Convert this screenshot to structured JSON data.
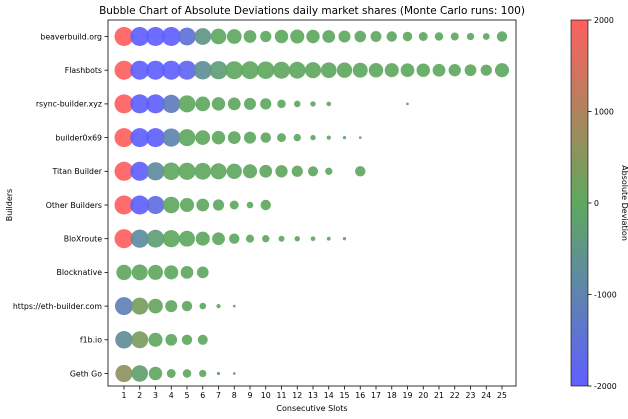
{
  "chart_data": {
    "type": "scatter",
    "title": "Bubble Chart of Absolute Deviations daily market shares (Monte Carlo runs: 100)",
    "xlabel": "Consecutive Slots",
    "ylabel": "Builders",
    "x_ticks": [
      "1",
      "2",
      "3",
      "4",
      "5",
      "6",
      "7",
      "8",
      "9",
      "10",
      "11",
      "12",
      "13",
      "14",
      "15",
      "16",
      "17",
      "18",
      "19",
      "20",
      "21",
      "22",
      "23",
      "24",
      "25"
    ],
    "builders": [
      "beaverbuild.org",
      "Flashbots",
      "rsync-builder.xyz",
      "builder0x69",
      "Titan Builder",
      "Other Builders",
      "BloXroute",
      "Blocknative",
      "https://eth-builder.com",
      "f1b.io",
      "Geth Go"
    ],
    "colorbar": {
      "label": "Absolute Deviation",
      "min": -2000,
      "max": 2000,
      "ticks": [
        "2000",
        "1000",
        "0",
        "-1000",
        "-2000"
      ],
      "colors": [
        "#ff5f5f",
        "#5fa85f",
        "#5f5fff"
      ]
    },
    "grid": false,
    "rows": [
      {
        "builder": "beaverbuild.org",
        "sizes": [
          1.0,
          1.0,
          1.0,
          1.0,
          0.88,
          0.78,
          0.68,
          0.6,
          0.45,
          0.35,
          0.5,
          0.55,
          0.5,
          0.45,
          0.4,
          0.37,
          0.33,
          0.3,
          0.25,
          0.22,
          0.2,
          0.18,
          0.15,
          0.13,
          0.3
        ],
        "deviations": [
          2000,
          -2000,
          -2000,
          -2000,
          -1500,
          -500,
          0,
          0,
          0,
          0,
          0,
          0,
          0,
          0,
          0,
          0,
          0,
          0,
          0,
          0,
          0,
          0,
          0,
          0,
          0
        ]
      },
      {
        "builder": "Flashbots",
        "sizes": [
          1.0,
          1.0,
          1.0,
          1.0,
          1.0,
          0.95,
          0.92,
          0.9,
          0.88,
          0.85,
          0.8,
          0.78,
          0.72,
          0.68,
          0.65,
          0.62,
          0.58,
          0.55,
          0.52,
          0.5,
          0.45,
          0.42,
          0.38,
          0.35,
          0.55
        ],
        "deviations": [
          2000,
          -2000,
          -2000,
          -2000,
          -1800,
          -700,
          -300,
          0,
          0,
          0,
          0,
          0,
          0,
          0,
          0,
          0,
          0,
          0,
          0,
          0,
          0,
          0,
          0,
          0,
          0
        ]
      },
      {
        "builder": "rsync-builder.xyz",
        "sizes": [
          1.0,
          1.0,
          1.0,
          0.92,
          0.8,
          0.6,
          0.5,
          0.45,
          0.4,
          0.35,
          0.2,
          0.12,
          0.08,
          0.06,
          0.0,
          0.0,
          0.0,
          0.0,
          0.02,
          0.0,
          0.0,
          0.0,
          0.0,
          0.0,
          0.0
        ],
        "deviations": [
          2000,
          -2000,
          -2000,
          -1200,
          0,
          0,
          0,
          0,
          0,
          0,
          0,
          0,
          0,
          0,
          0,
          0,
          0,
          0,
          0,
          0,
          0,
          0,
          0,
          0,
          0
        ]
      },
      {
        "builder": "builder0x69",
        "sizes": [
          1.0,
          1.0,
          1.0,
          0.92,
          0.8,
          0.6,
          0.5,
          0.45,
          0.4,
          0.3,
          0.22,
          0.15,
          0.08,
          0.05,
          0.03,
          0.02,
          0.0,
          0.0,
          0.0,
          0.0,
          0.0,
          0.0,
          0.0,
          0.0,
          0.0
        ],
        "deviations": [
          2000,
          -2000,
          -2000,
          -1000,
          0,
          0,
          0,
          0,
          0,
          0,
          0,
          0,
          0,
          0,
          0,
          0,
          0,
          0,
          0,
          0,
          0,
          0,
          0,
          0,
          0
        ]
      },
      {
        "builder": "Titan Builder",
        "sizes": [
          1.0,
          1.0,
          0.92,
          0.85,
          0.82,
          0.78,
          0.72,
          0.65,
          0.55,
          0.45,
          0.42,
          0.35,
          0.28,
          0.15,
          0.0,
          0.3,
          0.0,
          0.0,
          0.0,
          0.0,
          0.0,
          0.0,
          0.0,
          0.0,
          0.0
        ],
        "deviations": [
          2000,
          -2000,
          -800,
          0,
          0,
          0,
          0,
          0,
          0,
          0,
          0,
          0,
          0,
          0,
          0,
          0,
          0,
          0,
          0,
          0,
          0,
          0,
          0,
          0,
          0
        ]
      },
      {
        "builder": "Other Builders",
        "sizes": [
          1.0,
          1.0,
          0.9,
          0.75,
          0.55,
          0.45,
          0.35,
          0.22,
          0.12,
          0.3,
          0.0,
          0.0,
          0.0,
          0.0,
          0.0,
          0.0,
          0.0,
          0.0,
          0.0,
          0.0,
          0.0,
          0.0,
          0.0,
          0.0,
          0.0
        ],
        "deviations": [
          2000,
          -2000,
          -1600,
          0,
          0,
          0,
          0,
          0,
          0,
          0,
          0,
          0,
          0,
          0,
          0,
          0,
          0,
          0,
          0,
          0,
          0,
          0,
          0,
          0,
          0
        ]
      },
      {
        "builder": "BloXroute",
        "sizes": [
          1.0,
          0.92,
          0.88,
          0.82,
          0.7,
          0.55,
          0.45,
          0.3,
          0.18,
          0.15,
          0.1,
          0.08,
          0.06,
          0.04,
          0.03,
          0.0,
          0.0,
          0.0,
          0.0,
          0.0,
          0.0,
          0.0,
          0.0,
          0.0,
          0.0
        ],
        "deviations": [
          2000,
          -800,
          -300,
          0,
          0,
          0,
          0,
          0,
          0,
          0,
          0,
          0,
          0,
          0,
          0,
          0,
          0,
          0,
          0,
          0,
          0,
          0,
          0,
          0,
          0
        ]
      },
      {
        "builder": "Blocknative",
        "sizes": [
          0.65,
          0.7,
          0.62,
          0.55,
          0.45,
          0.38,
          0.0,
          0.0,
          0.0,
          0.0,
          0.0,
          0.0,
          0.0,
          0.0,
          0.0,
          0.0,
          0.0,
          0.0,
          0.0,
          0.0,
          0.0,
          0.0,
          0.0,
          0.0,
          0.0
        ],
        "deviations": [
          0,
          0,
          0,
          0,
          0,
          0,
          0,
          0,
          0,
          0,
          0,
          0,
          0,
          0,
          0,
          0,
          0,
          0,
          0,
          0,
          0,
          0,
          0,
          0,
          0
        ]
      },
      {
        "builder": "https://eth-builder.com",
        "sizes": [
          0.9,
          0.8,
          0.6,
          0.4,
          0.3,
          0.12,
          0.05,
          0.02,
          0.0,
          0.0,
          0.0,
          0.0,
          0.0,
          0.0,
          0.0,
          0.0,
          0.0,
          0.0,
          0.0,
          0.0,
          0.0,
          0.0,
          0.0,
          0.0,
          0.0
        ],
        "deviations": [
          -1100,
          300,
          100,
          0,
          0,
          0,
          0,
          0,
          0,
          0,
          0,
          0,
          0,
          0,
          0,
          0,
          0,
          0,
          0,
          0,
          0,
          0,
          0,
          0,
          0
        ]
      },
      {
        "builder": "f1b.io",
        "sizes": [
          0.85,
          0.8,
          0.55,
          0.38,
          0.3,
          0.28,
          0.0,
          0.0,
          0.0,
          0.0,
          0.0,
          0.0,
          0.0,
          0.0,
          0.0,
          0.0,
          0.0,
          0.0,
          0.0,
          0.0,
          0.0,
          0.0,
          0.0,
          0.0,
          0.0
        ],
        "deviations": [
          -700,
          350,
          0,
          0,
          0,
          0,
          0,
          0,
          0,
          0,
          0,
          0,
          0,
          0,
          0,
          0,
          0,
          0,
          0,
          0,
          0,
          0,
          0,
          0,
          0
        ]
      },
      {
        "builder": "Geth Go",
        "sizes": [
          0.82,
          0.75,
          0.5,
          0.22,
          0.2,
          0.15,
          0.03,
          0.02,
          0.0,
          0.0,
          0.0,
          0.0,
          0.0,
          0.0,
          0.0,
          0.0,
          0.0,
          0.0,
          0.0,
          0.0,
          0.0,
          0.0,
          0.0,
          0.0,
          0.0
        ],
        "deviations": [
          600,
          -200,
          0,
          0,
          0,
          0,
          0,
          0,
          0,
          0,
          0,
          0,
          0,
          0,
          0,
          0,
          0,
          0,
          0,
          0,
          0,
          0,
          0,
          0,
          0
        ]
      }
    ]
  }
}
